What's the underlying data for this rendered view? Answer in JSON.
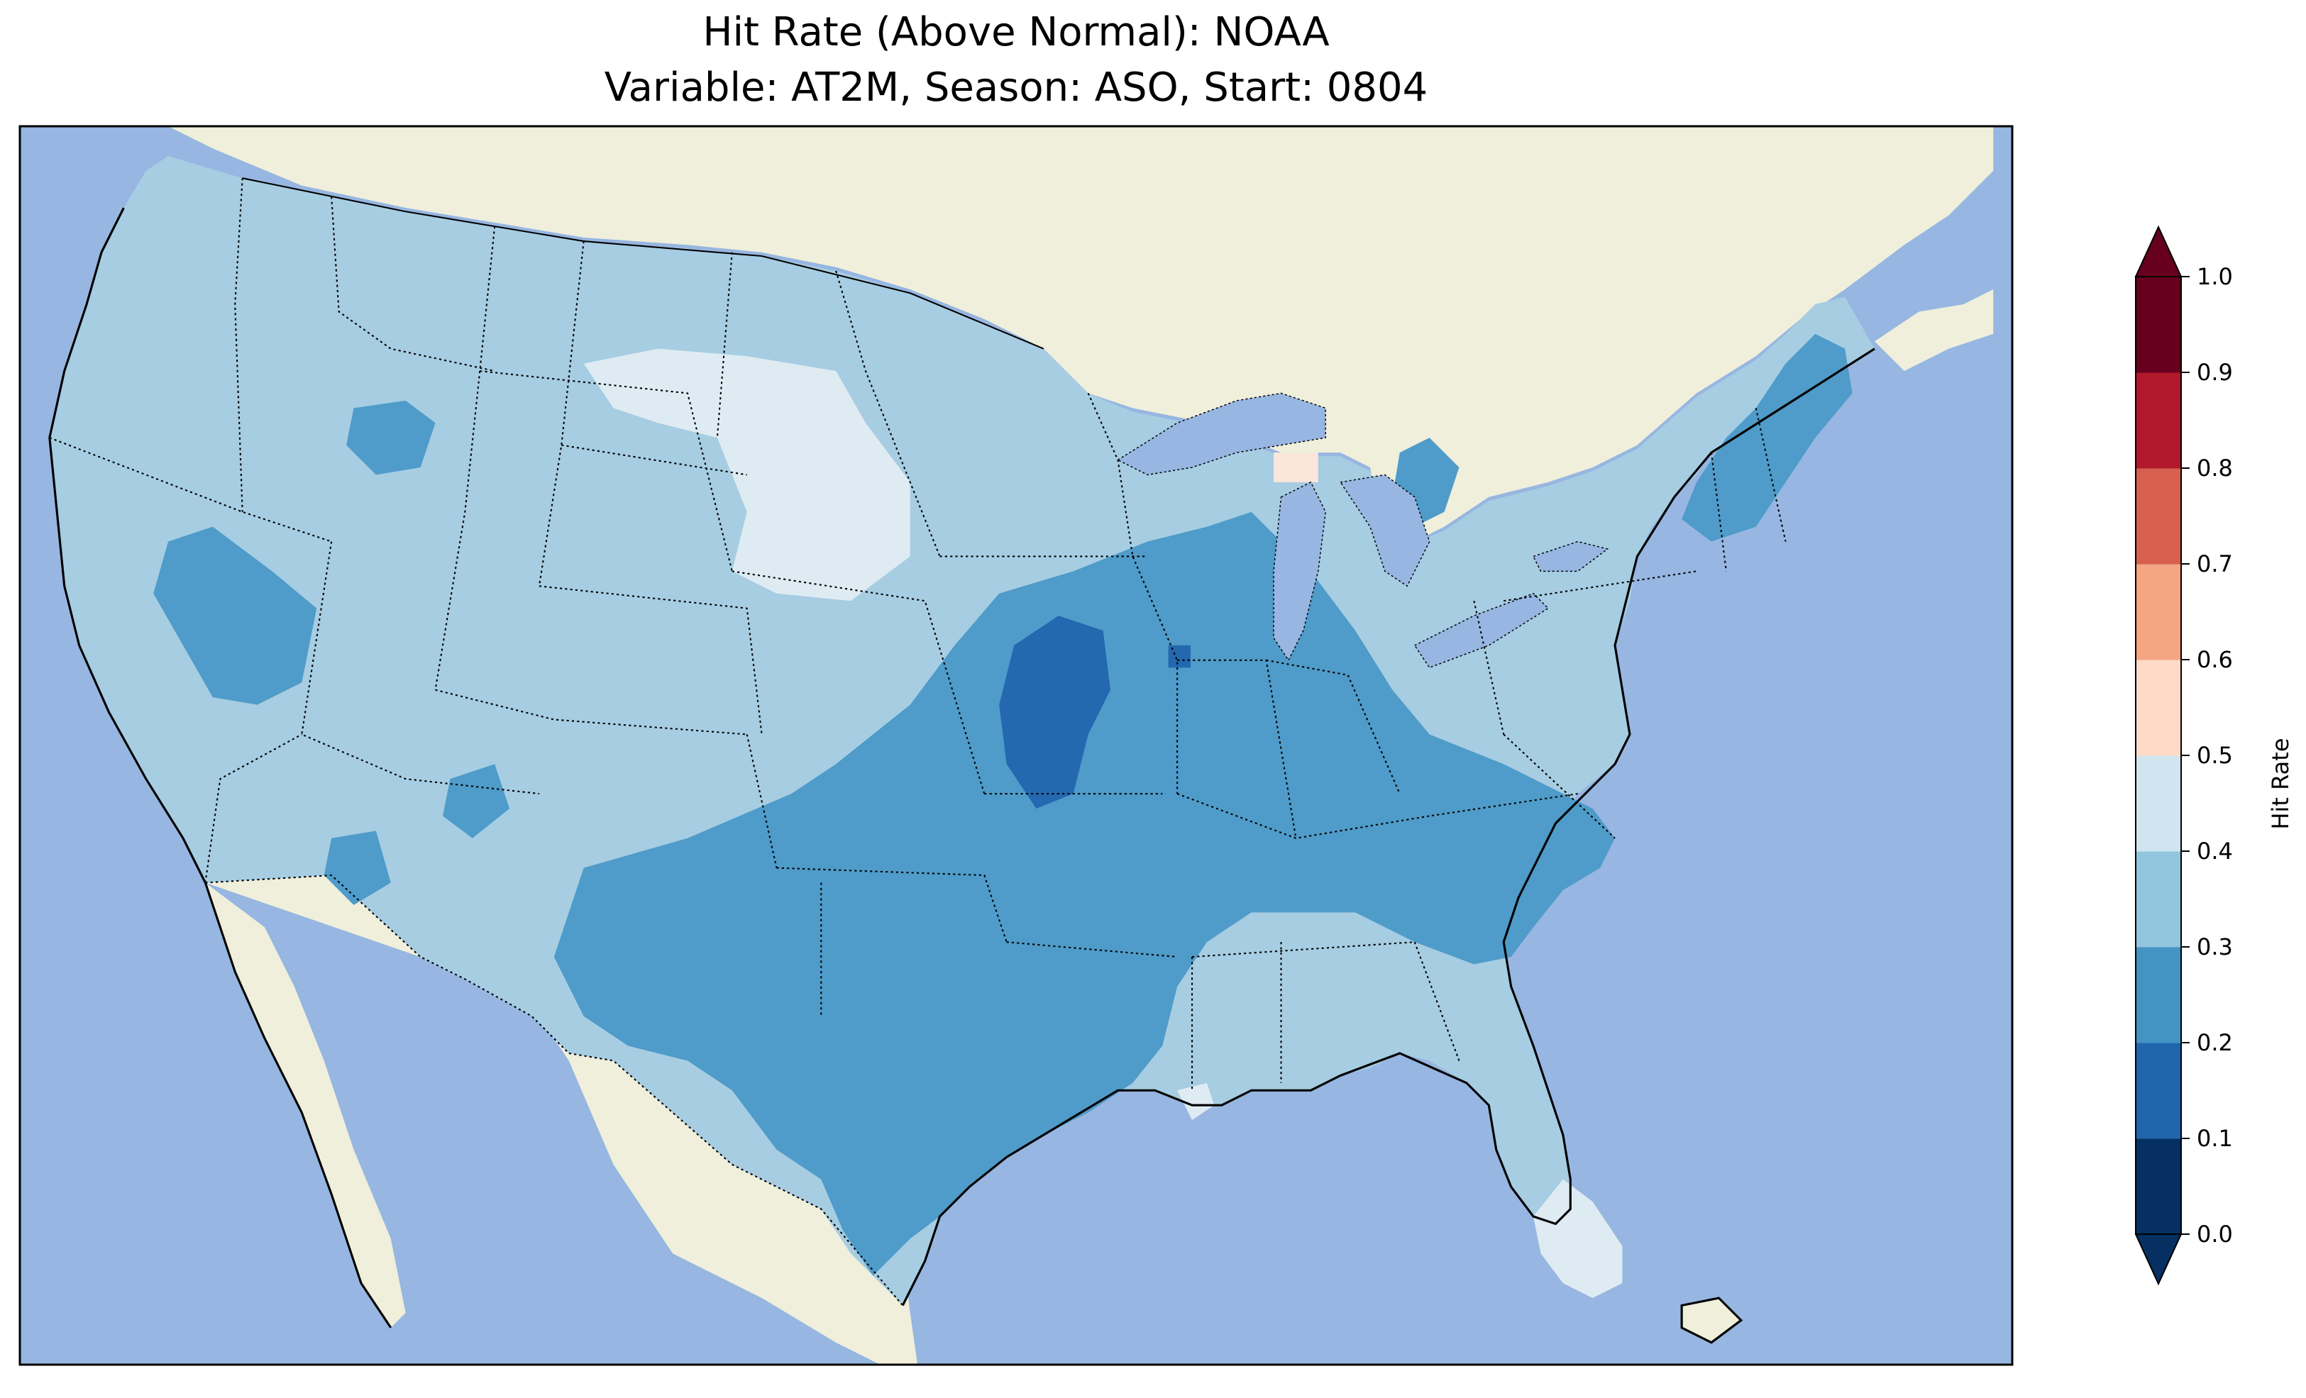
{
  "title": {
    "line1": "Hit Rate (Above Normal): NOAA",
    "line2": "Variable: AT2M, Season: ASO, Start: 0804"
  },
  "colorbar": {
    "label": "Hit Rate",
    "extend": "both",
    "ticks": [
      "0.0",
      "0.1",
      "0.2",
      "0.3",
      "0.4",
      "0.5",
      "0.6",
      "0.7",
      "0.8",
      "0.9",
      "1.0"
    ],
    "bin_colors": [
      "#053061",
      "#2166ac",
      "#4393c3",
      "#92c5de",
      "#d1e5f0",
      "#fddbc7",
      "#f4a582",
      "#d6604d",
      "#b2182b",
      "#67001f"
    ],
    "under_color": "#053061",
    "over_color": "#67001f"
  },
  "map_colors": {
    "ocean": "#97b6e1",
    "land": "#efefdb",
    "bin_0_2_to_0_3": "#4f9bc9",
    "bin_0_3_to_0_4": "#a6cde2",
    "bin_0_1_to_0_2": "#2468b0",
    "bin_0_4_to_0_5": "#dfebf2",
    "bin_0_5_to_0_6": "#fbe6dc"
  },
  "map": {
    "region": "Contiguous United States",
    "regions": [
      {
        "name": "west-coast",
        "hit_rate_bin": "0.3-0.4"
      },
      {
        "name": "great-basin",
        "hit_rate_bin": "0.2-0.3"
      },
      {
        "name": "northern-plains",
        "hit_rate_bin": "0.4-0.5"
      },
      {
        "name": "central-midwest",
        "hit_rate_bin": "0.2-0.3"
      },
      {
        "name": "missouri-iowa-core",
        "hit_rate_bin": "0.1-0.2"
      },
      {
        "name": "texas",
        "hit_rate_bin": "0.2-0.3"
      },
      {
        "name": "southeast",
        "hit_rate_bin": "0.3-0.4"
      },
      {
        "name": "carolinas",
        "hit_rate_bin": "0.2-0.3"
      },
      {
        "name": "new-england",
        "hit_rate_bin": "0.2-0.3"
      },
      {
        "name": "south-florida",
        "hit_rate_bin": "0.4-0.5"
      },
      {
        "name": "upper-michigan-spot",
        "hit_rate_bin": "0.5-0.6"
      }
    ]
  }
}
